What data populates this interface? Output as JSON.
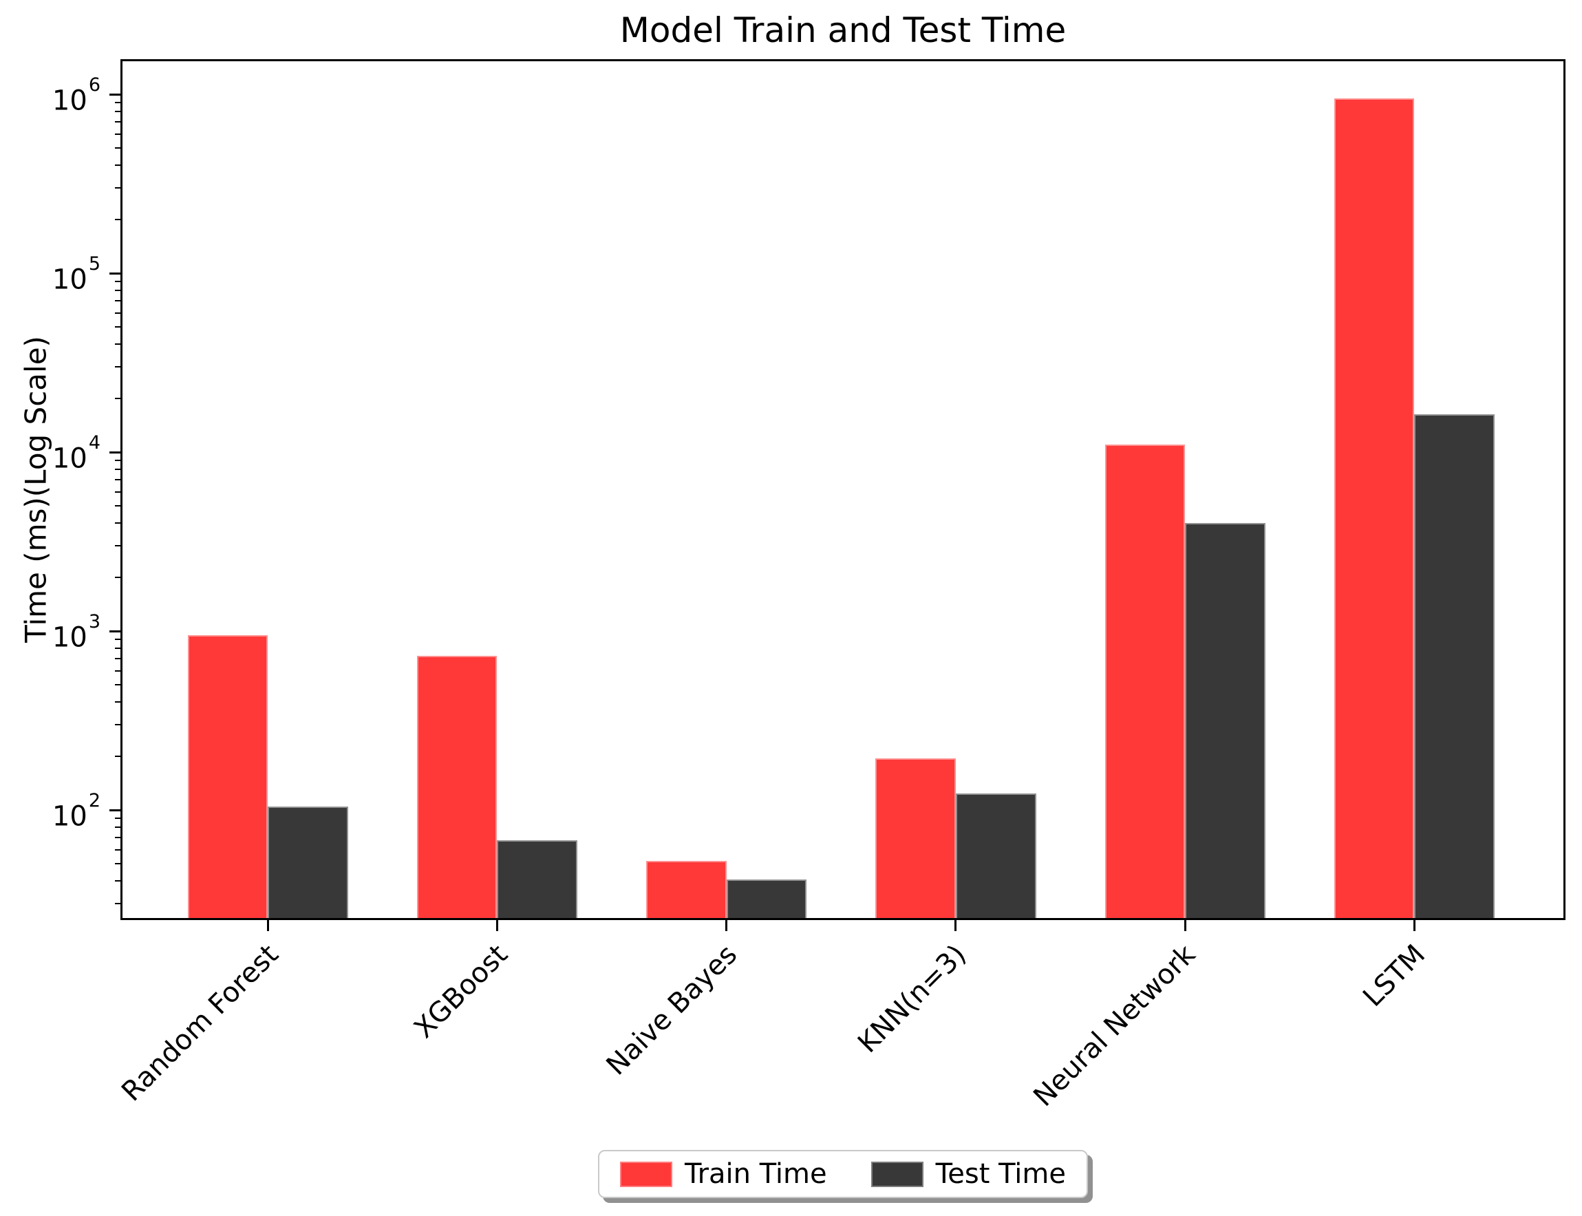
{
  "figure": {
    "title": "Model Train and Test Time"
  },
  "chart_data": {
    "type": "bar",
    "title": "Model Train and Test Time",
    "xlabel": "",
    "ylabel": "Time (ms)(Log Scale)",
    "yscale": "log",
    "ylim": [
      24.9,
      1530000
    ],
    "grid": false,
    "background": "#ffffff",
    "axis_color": "#000000",
    "categories": [
      "Random Forest",
      "XGBoost",
      "Naive Bayes",
      "KNN(n=3)",
      "Neural Network",
      "LSTM"
    ],
    "series": [
      {
        "name": "Train Time",
        "color": "#ff3838",
        "values": [
          950,
          730,
          52,
          195,
          11000,
          950000
        ]
      },
      {
        "name": "Test Time",
        "color": "#383838",
        "values": [
          105,
          68,
          41,
          124,
          4000,
          16300
        ]
      }
    ],
    "bar_width_data_units": 0.35,
    "xtick_rotation": 45,
    "y_major_ticks": [
      {
        "exponent": 6,
        "value": 1000000
      },
      {
        "exponent": 5,
        "value": 100000
      },
      {
        "exponent": 4,
        "value": 10000
      },
      {
        "exponent": 3,
        "value": 1000
      },
      {
        "exponent": 2,
        "value": 100
      }
    ],
    "legend": {
      "position": "bottom-center",
      "labels": [
        "Train Time",
        "Test Time"
      ]
    }
  }
}
